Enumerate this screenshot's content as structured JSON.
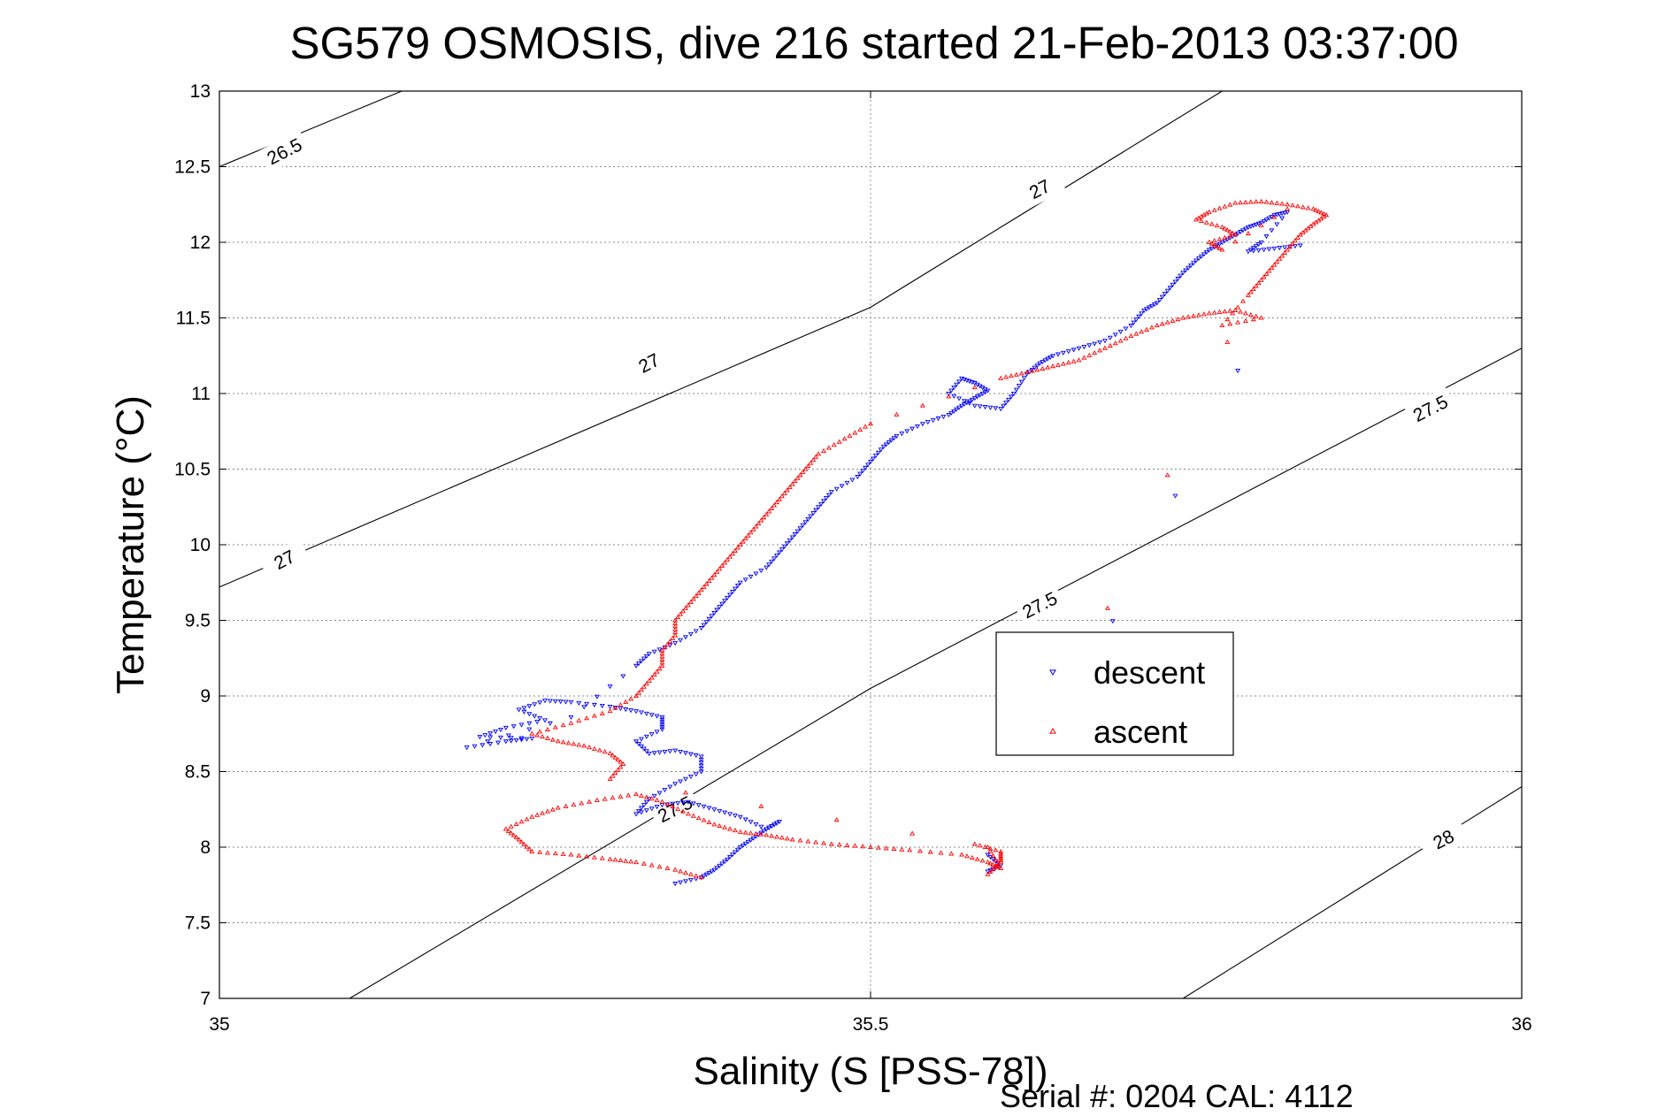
{
  "chart_data": {
    "type": "scatter",
    "title": "SG579 OSMOSIS, dive 216 started 21-Feb-2013 03:37:00",
    "xlabel": "Salinity (S [PSS-78])",
    "ylabel": "Temperature (°C)",
    "xlim": [
      35,
      36
    ],
    "ylim": [
      7,
      13
    ],
    "xticks": [
      35,
      35.5,
      36
    ],
    "xtick_labels": [
      "35",
      "35.5",
      "36"
    ],
    "yticks": [
      7,
      7.5,
      8,
      8.5,
      9,
      9.5,
      10,
      10.5,
      11,
      11.5,
      12,
      12.5,
      13
    ],
    "ytick_labels": [
      "7",
      "7.5",
      "8",
      "8.5",
      "9",
      "9.5",
      "10",
      "10.5",
      "11",
      "11.5",
      "12",
      "12.5",
      "13"
    ],
    "grid": true,
    "legend_position": "center-right",
    "footer": "Serial #: 0204  CAL: 4112",
    "density_contours": [
      {
        "level": "26.5",
        "points": [
          [
            35.0,
            12.5
          ],
          [
            35.14,
            13.0
          ]
        ],
        "labels": [
          {
            "text": "26.5",
            "x": 35.05,
            "y": 12.6
          }
        ]
      },
      {
        "level": "27",
        "points": [
          [
            35.0,
            9.72
          ],
          [
            35.5,
            11.57
          ],
          [
            35.77,
            13.0
          ]
        ],
        "labels": [
          {
            "text": "27",
            "x": 35.05,
            "y": 9.9
          },
          {
            "text": "27",
            "x": 35.33,
            "y": 11.2
          },
          {
            "text": "27",
            "x": 35.63,
            "y": 12.35
          }
        ]
      },
      {
        "level": "27.5",
        "points": [
          [
            35.1,
            7.0
          ],
          [
            35.5,
            9.05
          ],
          [
            36.0,
            11.3
          ]
        ],
        "labels": [
          {
            "text": "27.5",
            "x": 35.35,
            "y": 8.25
          },
          {
            "text": "27.5",
            "x": 35.63,
            "y": 9.6
          },
          {
            "text": "27.5",
            "x": 35.93,
            "y": 10.9
          }
        ]
      },
      {
        "level": "28",
        "points": [
          [
            35.74,
            7.0
          ],
          [
            36.0,
            8.4
          ]
        ],
        "labels": [
          {
            "text": "28",
            "x": 35.94,
            "y": 8.05
          }
        ]
      }
    ],
    "series": [
      {
        "name": "descent",
        "color": "#0000ff",
        "marker": "triangle-down",
        "values": [
          [
            35.35,
            7.76
          ],
          [
            35.37,
            7.8
          ],
          [
            35.38,
            7.85
          ],
          [
            35.39,
            7.92
          ],
          [
            35.4,
            8.0
          ],
          [
            35.41,
            8.06
          ],
          [
            35.42,
            8.12
          ],
          [
            35.43,
            8.17
          ],
          [
            35.42,
            8.12
          ],
          [
            35.4,
            8.2
          ],
          [
            35.38,
            8.25
          ],
          [
            35.36,
            8.3
          ],
          [
            35.34,
            8.28
          ],
          [
            35.32,
            8.22
          ],
          [
            35.33,
            8.32
          ],
          [
            35.35,
            8.42
          ],
          [
            35.37,
            8.5
          ],
          [
            35.37,
            8.6
          ],
          [
            35.35,
            8.64
          ],
          [
            35.33,
            8.62
          ],
          [
            35.32,
            8.7
          ],
          [
            35.34,
            8.78
          ],
          [
            35.34,
            8.86
          ],
          [
            35.32,
            8.9
          ],
          [
            35.3,
            8.93
          ],
          [
            35.27,
            8.96
          ],
          [
            35.25,
            8.97
          ],
          [
            35.23,
            8.91
          ],
          [
            35.25,
            8.84
          ],
          [
            35.22,
            8.79
          ],
          [
            35.2,
            8.73
          ],
          [
            35.24,
            8.72
          ],
          [
            35.22,
            8.7
          ],
          [
            35.19,
            8.66
          ],
          [
            35.27,
            8.86
          ],
          [
            35.32,
            9.2
          ],
          [
            35.33,
            9.28
          ],
          [
            35.35,
            9.35
          ],
          [
            35.37,
            9.45
          ],
          [
            35.38,
            9.55
          ],
          [
            35.39,
            9.65
          ],
          [
            35.4,
            9.75
          ],
          [
            35.42,
            9.85
          ],
          [
            35.43,
            9.95
          ],
          [
            35.44,
            10.05
          ],
          [
            35.45,
            10.15
          ],
          [
            35.46,
            10.25
          ],
          [
            35.47,
            10.35
          ],
          [
            35.49,
            10.45
          ],
          [
            35.5,
            10.55
          ],
          [
            35.51,
            10.65
          ],
          [
            35.52,
            10.72
          ],
          [
            35.54,
            10.8
          ],
          [
            35.56,
            10.86
          ],
          [
            35.57,
            10.92
          ],
          [
            35.58,
            10.97
          ],
          [
            35.59,
            11.02
          ],
          [
            35.58,
            11.07
          ],
          [
            35.57,
            11.1
          ],
          [
            35.56,
            11.0
          ],
          [
            35.58,
            10.92
          ],
          [
            35.6,
            10.9
          ],
          [
            35.61,
            11.0
          ],
          [
            35.62,
            11.13
          ],
          [
            35.63,
            11.2
          ],
          [
            35.64,
            11.25
          ],
          [
            35.66,
            11.3
          ],
          [
            35.68,
            11.35
          ],
          [
            35.7,
            11.45
          ],
          [
            35.71,
            11.55
          ],
          [
            35.72,
            11.6
          ],
          [
            35.73,
            11.7
          ],
          [
            35.74,
            11.8
          ],
          [
            35.75,
            11.88
          ],
          [
            35.76,
            11.95
          ],
          [
            35.77,
            12.0
          ],
          [
            35.78,
            12.05
          ],
          [
            35.79,
            12.1
          ],
          [
            35.8,
            12.13
          ],
          [
            35.81,
            12.18
          ],
          [
            35.82,
            12.2
          ],
          [
            35.8,
            12.0
          ],
          [
            35.79,
            11.94
          ],
          [
            35.81,
            11.96
          ],
          [
            35.83,
            11.98
          ],
          [
            35.59,
            7.84
          ],
          [
            35.6,
            7.88
          ],
          [
            35.59,
            7.95
          ]
        ]
      },
      {
        "name": "ascent",
        "color": "#ff0000",
        "marker": "triangle-up",
        "values": [
          [
            35.37,
            7.8
          ],
          [
            35.35,
            7.85
          ],
          [
            35.32,
            7.9
          ],
          [
            35.3,
            7.92
          ],
          [
            35.27,
            7.95
          ],
          [
            35.24,
            7.97
          ],
          [
            35.23,
            8.05
          ],
          [
            35.22,
            8.12
          ],
          [
            35.24,
            8.2
          ],
          [
            35.26,
            8.26
          ],
          [
            35.29,
            8.31
          ],
          [
            35.32,
            8.35
          ],
          [
            35.34,
            8.3
          ],
          [
            35.36,
            8.22
          ],
          [
            35.38,
            8.15
          ],
          [
            35.4,
            8.1
          ],
          [
            35.42,
            8.08
          ],
          [
            35.44,
            8.05
          ],
          [
            35.47,
            8.02
          ],
          [
            35.5,
            8.0
          ],
          [
            35.53,
            7.98
          ],
          [
            35.57,
            7.95
          ],
          [
            35.59,
            7.9
          ],
          [
            35.6,
            7.86
          ],
          [
            35.59,
            8.0
          ],
          [
            35.3,
            8.45
          ],
          [
            35.31,
            8.55
          ],
          [
            35.3,
            8.62
          ],
          [
            35.28,
            8.67
          ],
          [
            35.26,
            8.7
          ],
          [
            35.24,
            8.75
          ],
          [
            35.27,
            8.82
          ],
          [
            35.3,
            8.9
          ],
          [
            35.32,
            9.0
          ],
          [
            35.33,
            9.1
          ],
          [
            35.34,
            9.2
          ],
          [
            35.34,
            9.3
          ],
          [
            35.35,
            9.4
          ],
          [
            35.35,
            9.5
          ],
          [
            35.36,
            9.6
          ],
          [
            35.37,
            9.7
          ],
          [
            35.38,
            9.8
          ],
          [
            35.39,
            9.9
          ],
          [
            35.4,
            10.0
          ],
          [
            35.41,
            10.1
          ],
          [
            35.42,
            10.2
          ],
          [
            35.43,
            10.3
          ],
          [
            35.44,
            10.4
          ],
          [
            35.45,
            10.5
          ],
          [
            35.46,
            10.6
          ],
          [
            35.48,
            10.7
          ],
          [
            35.5,
            10.8
          ],
          [
            35.6,
            11.1
          ],
          [
            35.62,
            11.14
          ],
          [
            35.64,
            11.18
          ],
          [
            35.66,
            11.22
          ],
          [
            35.68,
            11.3
          ],
          [
            35.7,
            11.38
          ],
          [
            35.72,
            11.45
          ],
          [
            35.74,
            11.5
          ],
          [
            35.76,
            11.53
          ],
          [
            35.78,
            11.55
          ],
          [
            35.8,
            11.5
          ],
          [
            35.77,
            11.45
          ],
          [
            35.79,
            11.65
          ],
          [
            35.8,
            11.75
          ],
          [
            35.81,
            11.85
          ],
          [
            35.82,
            11.95
          ],
          [
            35.83,
            12.05
          ],
          [
            35.84,
            12.12
          ],
          [
            35.85,
            12.18
          ],
          [
            35.84,
            12.22
          ],
          [
            35.82,
            12.25
          ],
          [
            35.8,
            12.27
          ],
          [
            35.78,
            12.26
          ],
          [
            35.76,
            12.2
          ],
          [
            35.75,
            12.15
          ],
          [
            35.77,
            12.1
          ],
          [
            35.78,
            12.05
          ],
          [
            35.76,
            12.0
          ],
          [
            35.77,
            11.95
          ],
          [
            35.82,
            12.22
          ],
          [
            35.59,
            7.82
          ],
          [
            35.6,
            7.9
          ],
          [
            35.6,
            7.97
          ],
          [
            35.58,
            8.02
          ]
        ]
      }
    ]
  }
}
